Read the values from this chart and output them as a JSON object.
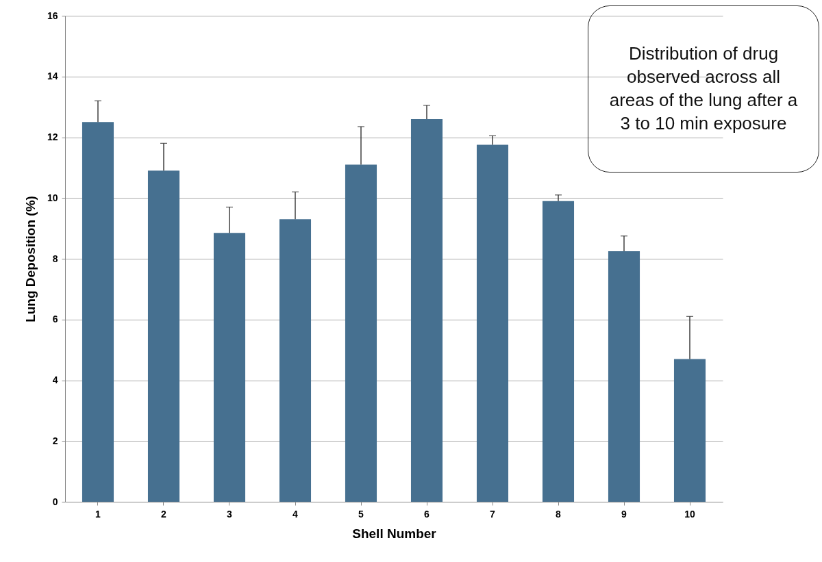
{
  "chart_data": {
    "type": "bar",
    "xlabel": "Shell Number",
    "ylabel": "Lung Deposition  (%)",
    "categories": [
      "1",
      "2",
      "3",
      "4",
      "5",
      "6",
      "7",
      "8",
      "9",
      "10"
    ],
    "values": [
      12.5,
      10.9,
      8.85,
      9.3,
      11.1,
      12.6,
      11.75,
      9.9,
      8.25,
      4.7
    ],
    "errors": [
      0.7,
      0.9,
      0.85,
      0.9,
      1.25,
      0.45,
      0.3,
      0.2,
      0.5,
      1.4
    ],
    "color": "#467090",
    "ylim": [
      0,
      16
    ],
    "yticks": [
      0,
      2,
      4,
      6,
      8,
      10,
      12,
      14,
      16
    ],
    "grid": "y",
    "annotations": [
      "Distribution of drug observed across all areas of the lung after a 3 to 10 min exposure"
    ]
  }
}
